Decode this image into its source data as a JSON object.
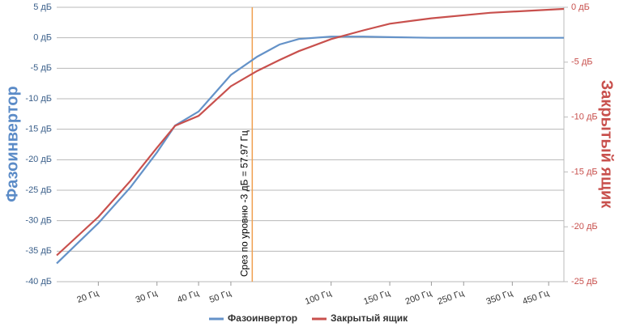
{
  "chart_data": {
    "type": "line",
    "y_title": "Фазоинвертор",
    "y2_title": "Закрытый ящик",
    "x": [
      15,
      20,
      25,
      30,
      34,
      40,
      50,
      60,
      70,
      80,
      100,
      125,
      150,
      200,
      300,
      400,
      500
    ],
    "log_x": true,
    "xlim": [
      15,
      500
    ],
    "xticks": [
      {
        "value": 20,
        "label": "20 Гц"
      },
      {
        "value": 30,
        "label": "30 Гц"
      },
      {
        "value": 40,
        "label": "40 Гц"
      },
      {
        "value": 50,
        "label": "50 Гц"
      },
      {
        "value": 100,
        "label": "100 Гц"
      },
      {
        "value": 150,
        "label": "150 Гц"
      },
      {
        "value": 200,
        "label": "200 Гц"
      },
      {
        "value": 250,
        "label": "250 Гц"
      },
      {
        "value": 350,
        "label": "350 Гц"
      },
      {
        "value": 450,
        "label": "450 Гц"
      }
    ],
    "ylim": [
      -40,
      5
    ],
    "yticks": [
      {
        "value": 5,
        "label": "5 дБ"
      },
      {
        "value": 0,
        "label": "0 дБ"
      },
      {
        "value": -5,
        "label": "-5 дБ"
      },
      {
        "value": -10,
        "label": "-10 дБ"
      },
      {
        "value": -15,
        "label": "-15 дБ"
      },
      {
        "value": -20,
        "label": "-20 дБ"
      },
      {
        "value": -25,
        "label": "-25 дБ"
      },
      {
        "value": -30,
        "label": "-30 дБ"
      },
      {
        "value": -35,
        "label": "-35 дБ"
      },
      {
        "value": -40,
        "label": "-40 дБ"
      }
    ],
    "y2lim": [
      -25,
      0
    ],
    "y2ticks": [
      {
        "value": 0,
        "label": "0 дБ"
      },
      {
        "value": -5,
        "label": "-5 дБ"
      },
      {
        "value": -10,
        "label": "-10 дБ"
      },
      {
        "value": -15,
        "label": "-15 дБ"
      },
      {
        "value": -20,
        "label": "-20 дБ"
      },
      {
        "value": -25,
        "label": "-25 дБ"
      }
    ],
    "grid": true,
    "legend": "bottom",
    "annotation": {
      "x": 57.97,
      "text": "Срез по уровню -3 дБ = 57.97 Гц",
      "color": "#f0a050"
    },
    "series": [
      {
        "name": "Фазоинвертор",
        "color": "#6492c8",
        "values": [
          -37,
          -30.4,
          -24.5,
          -18.8,
          -14.4,
          -12.1,
          -6.1,
          -3.1,
          -1.1,
          -0.2,
          0.2,
          0.2,
          0.1,
          0,
          0,
          0,
          0
        ]
      },
      {
        "name": "Закрытый ящик",
        "color": "#c8504d",
        "axis": "y2",
        "values": [
          -22.6,
          -19.1,
          -15.8,
          -12.8,
          -10.8,
          -9.9,
          -7.2,
          -5.8,
          -4.8,
          -4.0,
          -2.9,
          -2.1,
          -1.5,
          -1.0,
          -0.5,
          -0.3,
          -0.15
        ]
      }
    ]
  }
}
